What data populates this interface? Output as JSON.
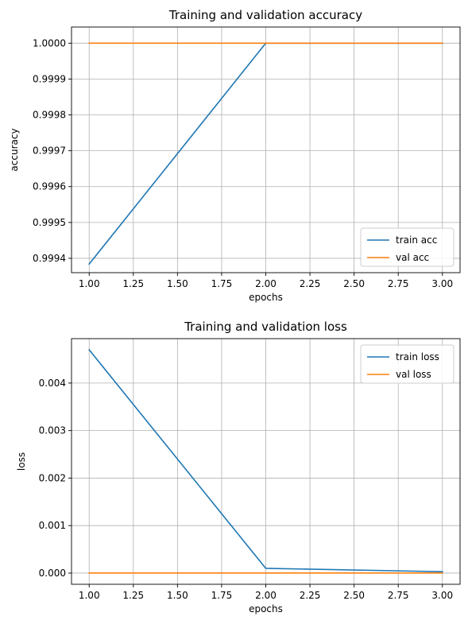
{
  "chart_data": [
    {
      "type": "line",
      "title": "Training and validation accuracy",
      "xlabel": "epochs",
      "ylabel": "accuracy",
      "xlim": [
        0.9,
        3.1
      ],
      "ylim": [
        0.99936,
        1.000045
      ],
      "x_ticks": [
        1.0,
        1.25,
        1.5,
        1.75,
        2.0,
        2.25,
        2.5,
        2.75,
        3.0
      ],
      "x_tick_labels": [
        "1.00",
        "1.25",
        "1.50",
        "1.75",
        "2.00",
        "2.25",
        "2.50",
        "2.75",
        "3.00"
      ],
      "y_ticks": [
        0.9994,
        0.9995,
        0.9996,
        0.9997,
        0.9998,
        0.9999,
        1.0
      ],
      "y_tick_labels": [
        "0.9994",
        "0.9995",
        "0.9996",
        "0.9997",
        "0.9998",
        "0.9999",
        "1.0000"
      ],
      "grid": true,
      "legend_position": "lower-right",
      "x": [
        1,
        2,
        3
      ],
      "series": [
        {
          "name": "train acc",
          "values": [
            0.999384,
            1.0,
            1.0
          ],
          "color": "#1f77b4"
        },
        {
          "name": "val acc",
          "values": [
            1.0,
            1.0,
            1.0
          ],
          "color": "#ff7f0e"
        }
      ]
    },
    {
      "type": "line",
      "title": "Training and validation loss",
      "xlabel": "epochs",
      "ylabel": "loss",
      "xlim": [
        0.9,
        3.1
      ],
      "ylim": [
        -0.000235,
        0.004935
      ],
      "x_ticks": [
        1.0,
        1.25,
        1.5,
        1.75,
        2.0,
        2.25,
        2.5,
        2.75,
        3.0
      ],
      "x_tick_labels": [
        "1.00",
        "1.25",
        "1.50",
        "1.75",
        "2.00",
        "2.25",
        "2.50",
        "2.75",
        "3.00"
      ],
      "y_ticks": [
        0.0,
        0.001,
        0.002,
        0.003,
        0.004
      ],
      "y_tick_labels": [
        "0.000",
        "0.001",
        "0.002",
        "0.003",
        "0.004"
      ],
      "grid": true,
      "legend_position": "upper-right",
      "x": [
        1,
        2,
        3
      ],
      "series": [
        {
          "name": "train loss",
          "values": [
            0.0047,
            0.0001,
            3e-05
          ],
          "color": "#1f77b4"
        },
        {
          "name": "val loss",
          "values": [
            2e-06,
            2e-06,
            2e-06
          ],
          "color": "#ff7f0e"
        }
      ]
    }
  ]
}
